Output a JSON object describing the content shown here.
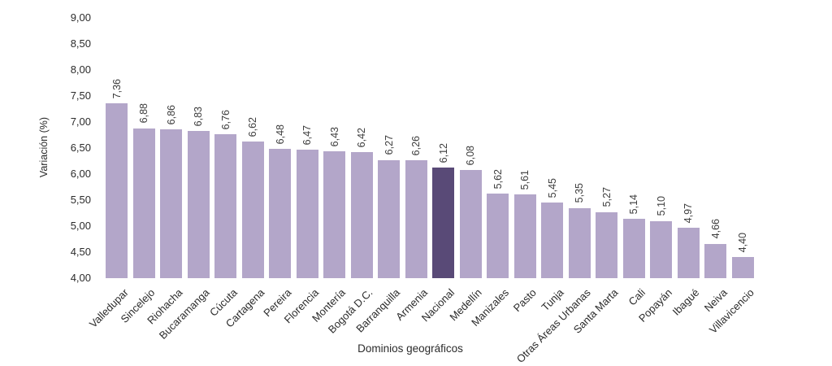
{
  "chart_data": {
    "type": "bar",
    "title": "",
    "xlabel": "Dominios geográficos",
    "ylabel": "Variación (%)",
    "ylim": [
      4.0,
      9.0
    ],
    "y_tick_step": 0.5,
    "y_ticks": [
      "4,00",
      "4,50",
      "5,00",
      "5,50",
      "6,00",
      "6,50",
      "7,00",
      "7,50",
      "8,00",
      "8,50",
      "9,00"
    ],
    "categories": [
      "Valledupar",
      "Sincelejo",
      "Riohacha",
      "Bucaramanga",
      "Cúcuta",
      "Cartagena",
      "Pereira",
      "Florencia",
      "Montería",
      "Bogotá D.C.",
      "Barranquilla",
      "Armenia",
      "Nacional",
      "Medellín",
      "Manizales",
      "Pasto",
      "Tunja",
      "Otras Áreas Urbanas",
      "Santa Marta",
      "Cali",
      "Popayán",
      "Ibagué",
      "Neiva",
      "Villavicencio"
    ],
    "values": [
      7.36,
      6.88,
      6.86,
      6.83,
      6.76,
      6.62,
      6.48,
      6.47,
      6.43,
      6.42,
      6.27,
      6.26,
      6.12,
      6.08,
      5.62,
      5.61,
      5.45,
      5.35,
      5.27,
      5.14,
      5.1,
      4.97,
      4.66,
      4.4
    ],
    "value_labels": [
      "7,36",
      "6,88",
      "6,86",
      "6,83",
      "6,76",
      "6,62",
      "6,48",
      "6,47",
      "6,43",
      "6,42",
      "6,27",
      "6,26",
      "6,12",
      "6,08",
      "5,62",
      "5,61",
      "5,45",
      "5,35",
      "5,27",
      "5,14",
      "5,10",
      "4,97",
      "4,66",
      "4,40"
    ],
    "highlight_category": "Nacional",
    "highlight_index": 12,
    "colors": {
      "bar": "#b3a6c9",
      "highlight": "#594a77",
      "value_text": "#3d3d3d",
      "axis_text": "#2b2b2b",
      "background": "#ffffff"
    },
    "grid": false,
    "legend": false,
    "bar_value_labels_rotated": true,
    "x_labels_rotated_degrees": 45
  }
}
